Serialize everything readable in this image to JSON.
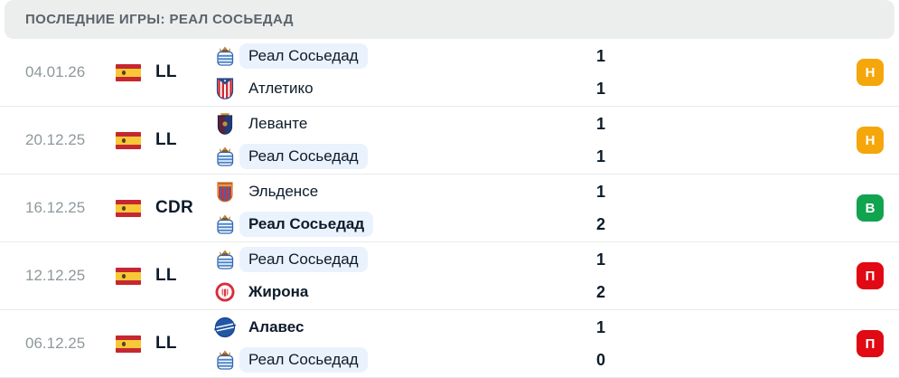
{
  "header": {
    "title": "ПОСЛЕДНИЕ ИГРЫ: РЕАЛ СОСЬЕДАД"
  },
  "colors": {
    "highlight_pill": "#EAF2FD",
    "win": "#10A44F",
    "draw": "#F5A60B",
    "loss": "#E00914",
    "text_dark": "#0D1B2A",
    "text_muted": "#8F989D",
    "header_bg": "#ECEDED"
  },
  "matches": [
    {
      "date": "04.01.26",
      "competition": "LL",
      "flag": "spain-flag",
      "teams": [
        {
          "name": "Реал Сосьедад",
          "score": "1",
          "logo": "real-sociedad-logo",
          "highlighted": true,
          "winner": false
        },
        {
          "name": "Атлетико",
          "score": "1",
          "logo": "atletico-madrid-logo",
          "highlighted": false,
          "winner": false
        }
      ],
      "result": {
        "label": "Н",
        "type": "draw"
      }
    },
    {
      "date": "20.12.25",
      "competition": "LL",
      "flag": "spain-flag",
      "teams": [
        {
          "name": "Леванте",
          "score": "1",
          "logo": "levante-logo",
          "highlighted": false,
          "winner": false
        },
        {
          "name": "Реал Сосьедад",
          "score": "1",
          "logo": "real-sociedad-logo",
          "highlighted": true,
          "winner": false
        }
      ],
      "result": {
        "label": "Н",
        "type": "draw"
      }
    },
    {
      "date": "16.12.25",
      "competition": "CDR",
      "flag": "spain-flag",
      "teams": [
        {
          "name": "Эльденсе",
          "score": "1",
          "logo": "eldense-logo",
          "highlighted": false,
          "winner": false
        },
        {
          "name": "Реал Сосьедад",
          "score": "2",
          "logo": "real-sociedad-logo",
          "highlighted": true,
          "winner": true
        }
      ],
      "result": {
        "label": "В",
        "type": "win"
      }
    },
    {
      "date": "12.12.25",
      "competition": "LL",
      "flag": "spain-flag",
      "teams": [
        {
          "name": "Реал Сосьедад",
          "score": "1",
          "logo": "real-sociedad-logo",
          "highlighted": true,
          "winner": false
        },
        {
          "name": "Жирона",
          "score": "2",
          "logo": "girona-logo",
          "highlighted": false,
          "winner": true
        }
      ],
      "result": {
        "label": "П",
        "type": "loss"
      }
    },
    {
      "date": "06.12.25",
      "competition": "LL",
      "flag": "spain-flag",
      "teams": [
        {
          "name": "Алавес",
          "score": "1",
          "logo": "alaves-logo",
          "highlighted": false,
          "winner": true
        },
        {
          "name": "Реал Сосьедад",
          "score": "0",
          "logo": "real-sociedad-logo",
          "highlighted": true,
          "winner": false
        }
      ],
      "result": {
        "label": "П",
        "type": "loss"
      }
    }
  ]
}
